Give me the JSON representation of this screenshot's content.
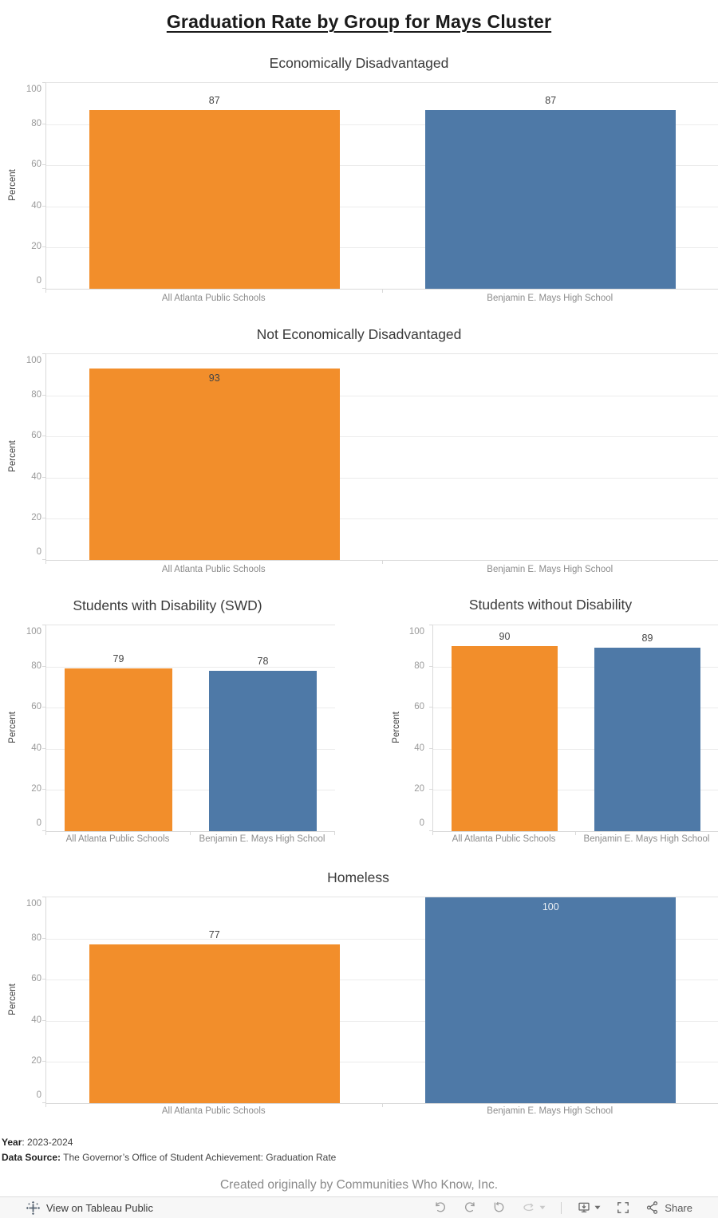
{
  "page": {
    "title": "Graduation Rate by Group for Mays Cluster"
  },
  "colors": {
    "all_atlanta_orange": "#f28e2b",
    "mays_blue": "#4e79a7"
  },
  "axis": {
    "label": "Percent",
    "ticks": [
      0,
      20,
      40,
      60,
      80,
      100
    ]
  },
  "categories": [
    "All Atlanta Public Schools",
    "Benjamin E. Mays High School"
  ],
  "chart_data": [
    {
      "type": "bar",
      "title": "Economically Disadvantaged",
      "categories": [
        "All Atlanta Public Schools",
        "Benjamin E. Mays High School"
      ],
      "values": [
        87,
        87
      ],
      "ylabel": "Percent",
      "ylim": [
        0,
        100
      ],
      "yticks": [
        0,
        20,
        40,
        60,
        80,
        100
      ],
      "bar_colors": [
        "#f28e2b",
        "#4e79a7"
      ],
      "grid": true,
      "legend": false
    },
    {
      "type": "bar",
      "title": "Not Economically Disadvantaged",
      "categories": [
        "All Atlanta Public Schools",
        "Benjamin E. Mays High School"
      ],
      "values": [
        93,
        null
      ],
      "ylabel": "Percent",
      "ylim": [
        0,
        100
      ],
      "yticks": [
        0,
        20,
        40,
        60,
        80,
        100
      ],
      "bar_colors": [
        "#f28e2b",
        "#4e79a7"
      ],
      "grid": true,
      "legend": false
    },
    {
      "type": "bar",
      "title": "Students with Disability (SWD)",
      "categories": [
        "All Atlanta Public Schools",
        "Benjamin E. Mays High School"
      ],
      "values": [
        79,
        78
      ],
      "ylabel": "Percent",
      "ylim": [
        0,
        100
      ],
      "yticks": [
        0,
        20,
        40,
        60,
        80,
        100
      ],
      "bar_colors": [
        "#f28e2b",
        "#4e79a7"
      ],
      "grid": true,
      "legend": false
    },
    {
      "type": "bar",
      "title": "Students without Disability",
      "categories": [
        "All Atlanta Public Schools",
        "Benjamin E. Mays High School"
      ],
      "values": [
        90,
        89
      ],
      "ylabel": "Percent",
      "ylim": [
        0,
        100
      ],
      "yticks": [
        0,
        20,
        40,
        60,
        80,
        100
      ],
      "bar_colors": [
        "#f28e2b",
        "#4e79a7"
      ],
      "grid": true,
      "legend": false
    },
    {
      "type": "bar",
      "title": "Homeless",
      "categories": [
        "All Atlanta Public Schools",
        "Benjamin E. Mays High School"
      ],
      "values": [
        77,
        100
      ],
      "ylabel": "Percent",
      "ylim": [
        0,
        100
      ],
      "yticks": [
        0,
        20,
        40,
        60,
        80,
        100
      ],
      "bar_colors": [
        "#f28e2b",
        "#4e79a7"
      ],
      "grid": true,
      "legend": false
    }
  ],
  "footer": {
    "year_label": "Year",
    "year_value": ": 2023-2024",
    "source_label": "Data Source:",
    "source_value": " The Governor’s Office of Student Achievement: Graduation Rate",
    "credit": "Created originally by Communities Who Know, Inc."
  },
  "toolbar": {
    "view_label": "View on Tableau Public",
    "share_label": "Share",
    "icons": [
      "tableau-logo",
      "undo",
      "redo",
      "reset",
      "refresh",
      "caret-down",
      "download-display",
      "fullscreen",
      "share"
    ]
  }
}
